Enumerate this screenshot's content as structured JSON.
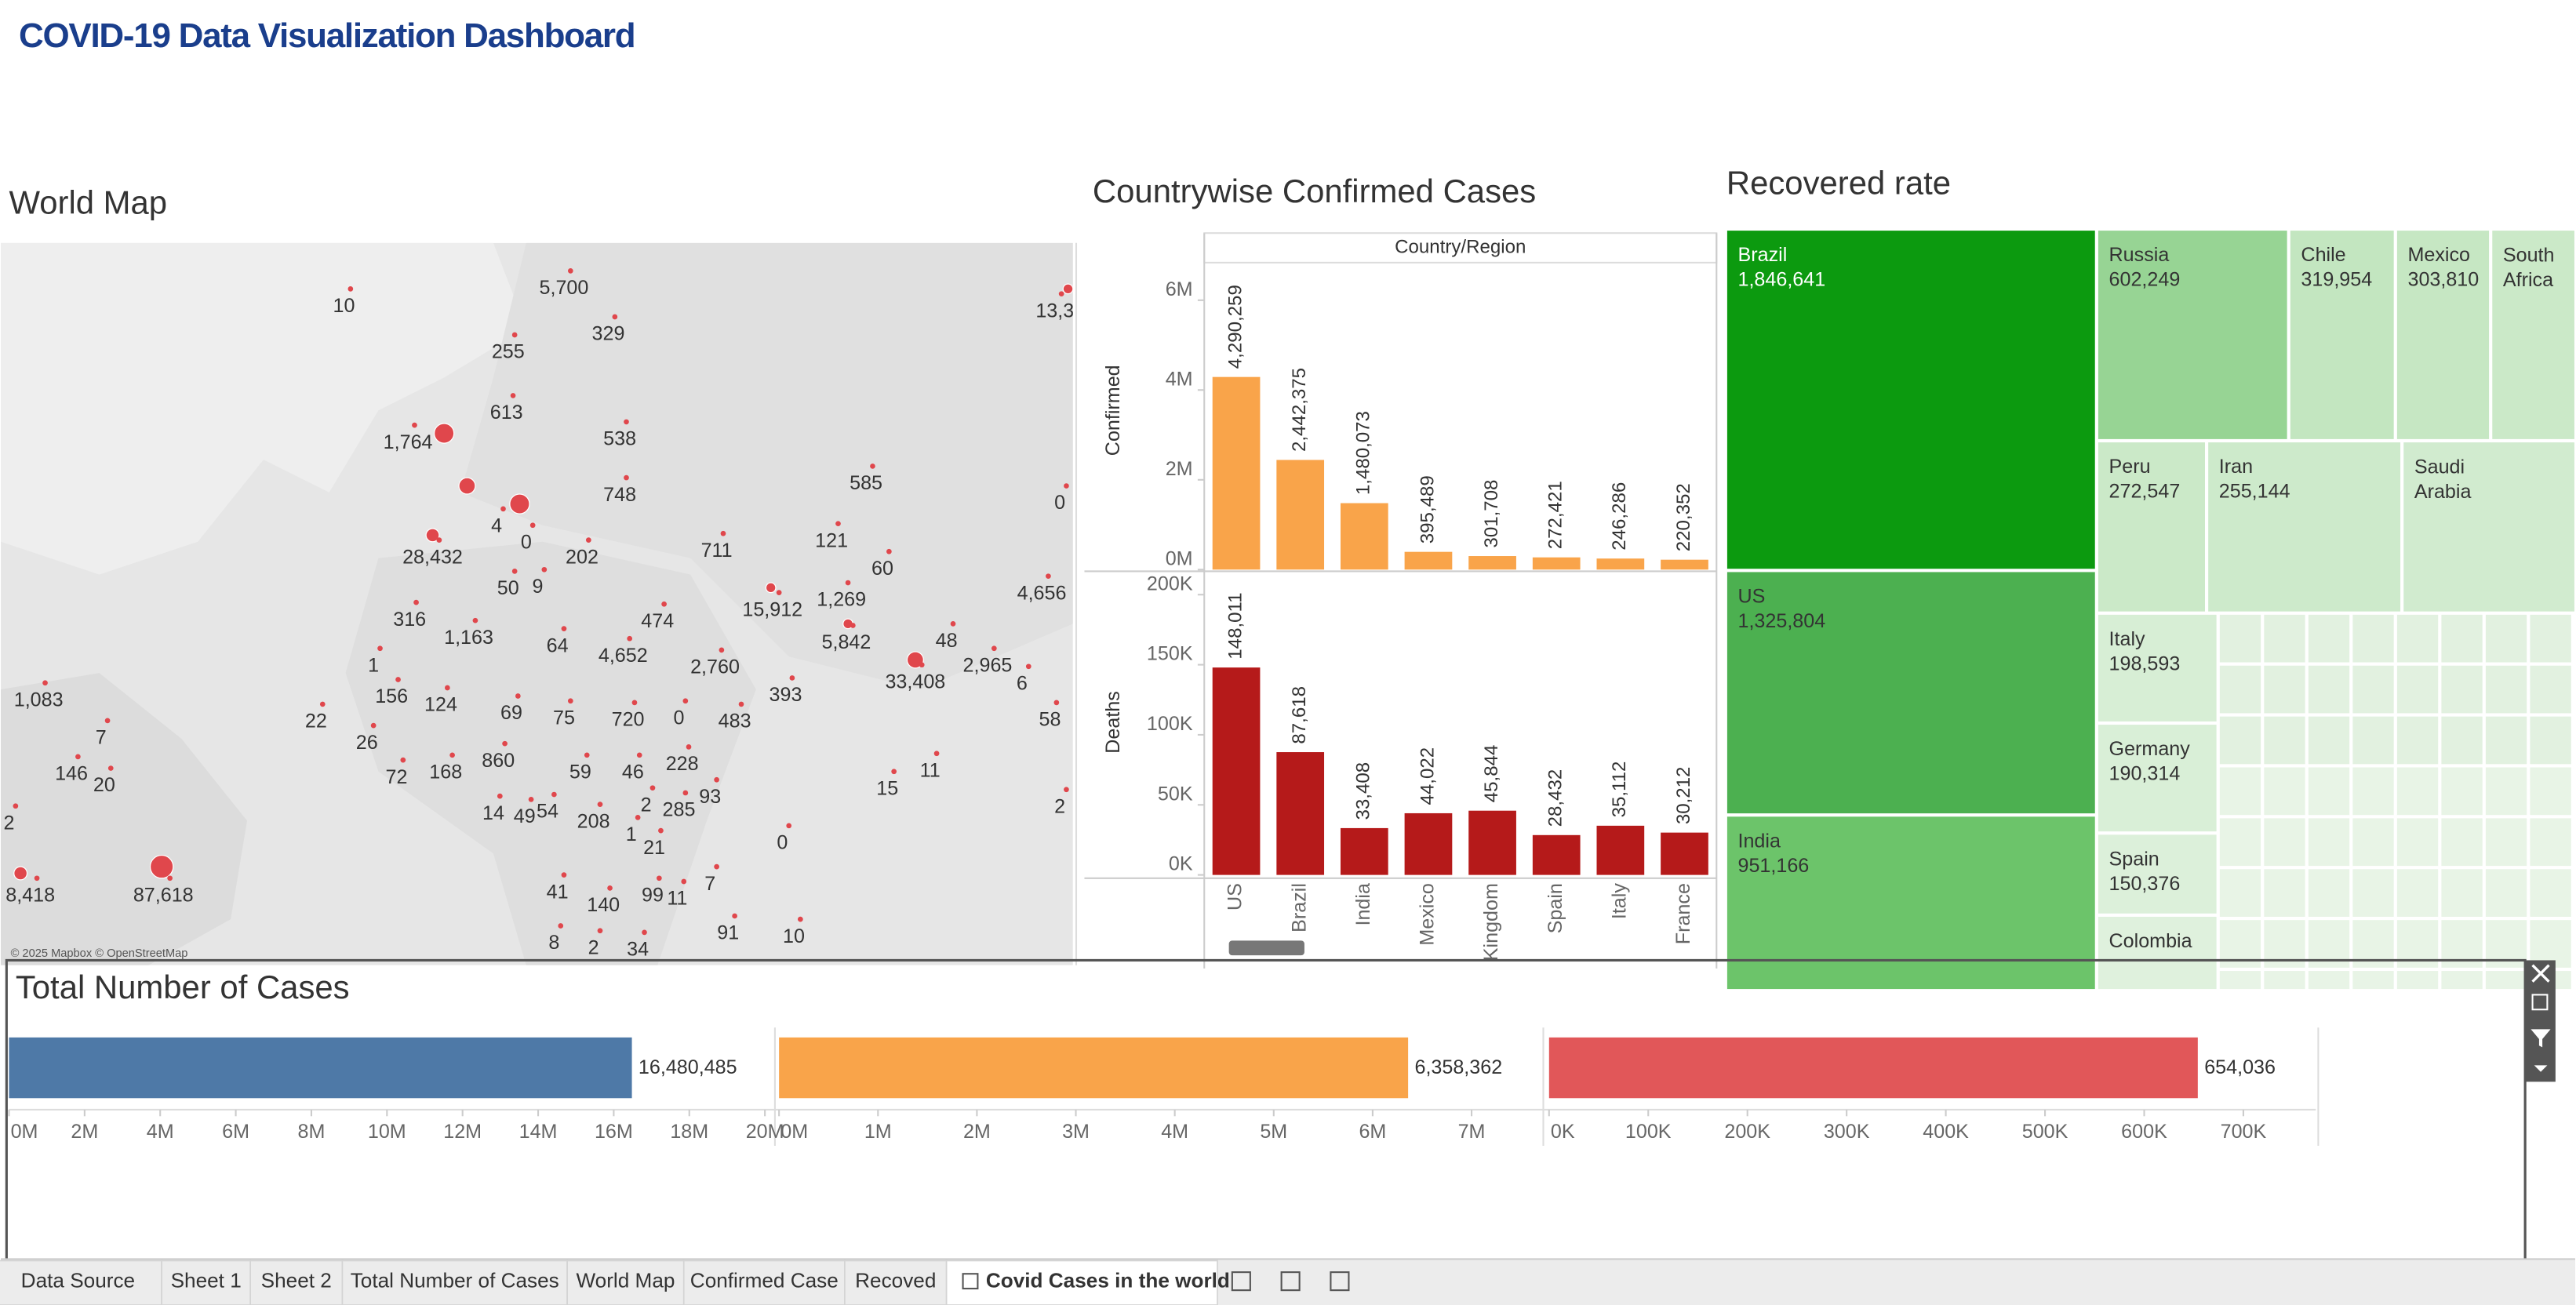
{
  "header": {
    "title": "COVID-19 Data Visualization Dashboard"
  },
  "map": {
    "title": "World Map",
    "attribution": "© 2025 Mapbox © OpenStreetMap",
    "labels": [
      "10",
      "5,700",
      "329",
      "255",
      "613",
      "1,764",
      "538",
      "748",
      "28,432",
      "4",
      "0",
      "202",
      "711",
      "585",
      "121",
      "60",
      "0",
      "13,3",
      "4,656",
      "50",
      "9",
      "15,912",
      "1,269",
      "316",
      "1,163",
      "474",
      "5,842",
      "48",
      "2,965",
      "6",
      "64",
      "4,652",
      "2,760",
      "33,408",
      "393",
      "1",
      "156",
      "124",
      "69",
      "75",
      "720",
      "0",
      "483",
      "58",
      "1,083",
      "7",
      "22",
      "26",
      "860",
      "228",
      "11",
      "146",
      "20",
      "72",
      "168",
      "59",
      "46",
      "15",
      "93",
      "2",
      "14",
      "49",
      "54",
      "208",
      "2",
      "285",
      "1",
      "0",
      "21",
      "7",
      "8,418",
      "87,618",
      "41",
      "140",
      "99",
      "11",
      "91",
      "10",
      "8",
      "2",
      "34",
      "2"
    ]
  },
  "chart_data": [
    {
      "type": "bar",
      "title": "Countrywise Confirmed Cases",
      "x_header": "Country/Region",
      "y_label": "Confirmed",
      "categories": [
        "US",
        "Brazil",
        "India",
        "Mexico",
        "United Kingdom",
        "Spain",
        "Italy",
        "France"
      ],
      "values": [
        4290259,
        2442375,
        1480073,
        395489,
        301708,
        272421,
        246286,
        220352
      ],
      "value_labels": [
        "4,290,259",
        "2,442,375",
        "1,480,073",
        "395,489",
        "301,708",
        "272,421",
        "246,286",
        "220,352"
      ],
      "color": "#f9a44a",
      "ylim": [
        0,
        6800000
      ],
      "yticks": [
        {
          "value": 0,
          "label": "0M"
        },
        {
          "value": 2000000,
          "label": "2M"
        },
        {
          "value": 4000000,
          "label": "4M"
        },
        {
          "value": 6000000,
          "label": "6M"
        }
      ]
    },
    {
      "type": "bar",
      "y_label": "Deaths",
      "values": [
        148011,
        87618,
        33408,
        44022,
        45844,
        28432,
        35112,
        30212
      ],
      "value_labels": [
        "148,011",
        "87,618",
        "33,408",
        "44,022",
        "45,844",
        "28,432",
        "35,112",
        "30,212"
      ],
      "color": "#b51a1a",
      "ylim": [
        0,
        205000
      ],
      "yticks": [
        {
          "value": 0,
          "label": "0K"
        },
        {
          "value": 50000,
          "label": "50K"
        },
        {
          "value": 100000,
          "label": "100K"
        },
        {
          "value": 150000,
          "label": "150K"
        },
        {
          "value": 200000,
          "label": "200K"
        }
      ]
    },
    {
      "type": "treemap",
      "title": "Recovered rate",
      "items": [
        {
          "name": "Brazil",
          "value": 1846641,
          "value_label": "1,846,641",
          "color": "#0c9a0f"
        },
        {
          "name": "Russia",
          "value": 602249,
          "value_label": "602,249",
          "color": "#97d494"
        },
        {
          "name": "Chile",
          "value": 319954,
          "value_label": "319,954",
          "color": "#c3e6c0"
        },
        {
          "name": "Mexico",
          "value": 303810,
          "value_label": "303,810",
          "color": "#c6e7c3"
        },
        {
          "name": "South Africa",
          "value": null,
          "color": "#cbe9c8"
        },
        {
          "name": "US",
          "value": 1325804,
          "value_label": "1,325,804",
          "color": "#4cb050"
        },
        {
          "name": "Peru",
          "value": 272547,
          "value_label": "272,547",
          "color": "#cbe9c8"
        },
        {
          "name": "Iran",
          "value": 255144,
          "value_label": "255,144",
          "color": "#cdeacb"
        },
        {
          "name": "Saudi Arabia",
          "value": null,
          "color": "#d1ebcf"
        },
        {
          "name": "India",
          "value": 951166,
          "value_label": "951,166",
          "color": "#6cc46a"
        },
        {
          "name": "Italy",
          "value": 198593,
          "value_label": "198,593",
          "color": "#d7eed5"
        },
        {
          "name": "Germany",
          "value": 190314,
          "value_label": "190,314",
          "color": "#d9efd7"
        },
        {
          "name": "Spain",
          "value": 150376,
          "value_label": "150,376",
          "color": "#dcf0da"
        },
        {
          "name": "Colombia",
          "value": null,
          "color": "#dff1dd"
        }
      ]
    },
    {
      "type": "hbar",
      "title": "Total Number of Cases",
      "panels": [
        {
          "value": 16480485,
          "value_label": "16,480,485",
          "color": "#4e79a7",
          "xlim": [
            0,
            20200000
          ],
          "xticks": [
            {
              "value": 0,
              "label": "0M"
            },
            {
              "value": 2000000,
              "label": "2M"
            },
            {
              "value": 4000000,
              "label": "4M"
            },
            {
              "value": 6000000,
              "label": "6M"
            },
            {
              "value": 8000000,
              "label": "8M"
            },
            {
              "value": 10000000,
              "label": "10M"
            },
            {
              "value": 12000000,
              "label": "12M"
            },
            {
              "value": 14000000,
              "label": "14M"
            },
            {
              "value": 16000000,
              "label": "16M"
            },
            {
              "value": 18000000,
              "label": "18M"
            },
            {
              "value": 20000000,
              "label": "20M"
            }
          ]
        },
        {
          "value": 6358362,
          "value_label": "6,358,362",
          "color": "#f9a44a",
          "xlim": [
            0,
            7700000
          ],
          "xticks": [
            {
              "value": 0,
              "label": "0M"
            },
            {
              "value": 1000000,
              "label": "1M"
            },
            {
              "value": 2000000,
              "label": "2M"
            },
            {
              "value": 3000000,
              "label": "3M"
            },
            {
              "value": 4000000,
              "label": "4M"
            },
            {
              "value": 5000000,
              "label": "5M"
            },
            {
              "value": 6000000,
              "label": "6M"
            },
            {
              "value": 7000000,
              "label": "7M"
            }
          ]
        },
        {
          "value": 654036,
          "value_label": "654,036",
          "color": "#e15759",
          "xlim": [
            0,
            773000
          ],
          "xticks": [
            {
              "value": 0,
              "label": "0K"
            },
            {
              "value": 100000,
              "label": "100K"
            },
            {
              "value": 200000,
              "label": "200K"
            },
            {
              "value": 300000,
              "label": "300K"
            },
            {
              "value": 400000,
              "label": "400K"
            },
            {
              "value": 500000,
              "label": "500K"
            },
            {
              "value": 600000,
              "label": "600K"
            },
            {
              "value": 700000,
              "label": "700K"
            }
          ]
        }
      ]
    }
  ],
  "tabs": [
    "Data Source",
    "Sheet 1",
    "Sheet 2",
    "Total Number of Cases",
    "World Map",
    "Confirmed Case",
    "Recoved",
    "Covid Cases in the world"
  ]
}
